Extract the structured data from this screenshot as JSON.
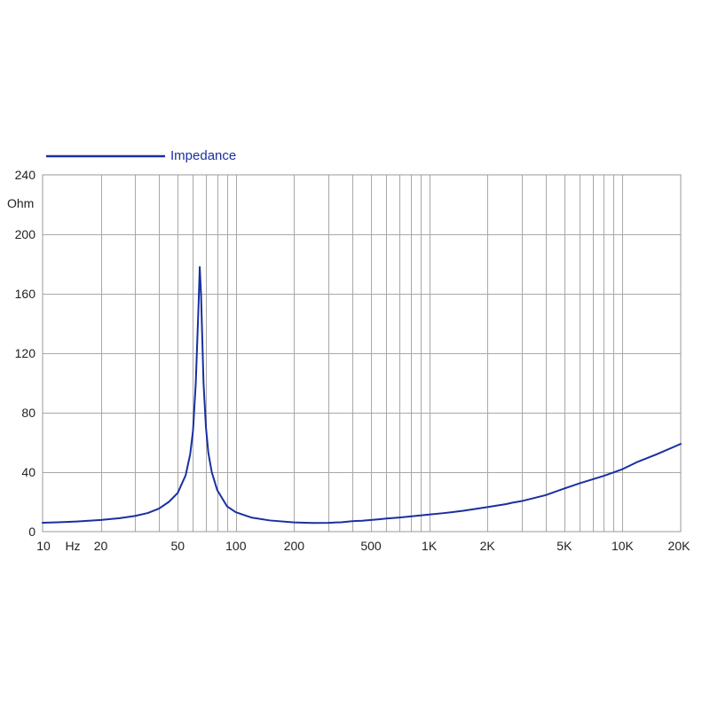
{
  "chart_data": {
    "type": "line",
    "title": "",
    "xscale": "log",
    "xlim": [
      10,
      20000
    ],
    "ylim": [
      0,
      240
    ],
    "grid": true,
    "legend_position": "top-left",
    "x_unit": "Hz",
    "y_unit": "Ohm",
    "x_ticks": [
      {
        "value": 10,
        "label": "10"
      },
      {
        "value": 20,
        "label": "20"
      },
      {
        "value": 50,
        "label": "50"
      },
      {
        "value": 100,
        "label": "100"
      },
      {
        "value": 200,
        "label": "200"
      },
      {
        "value": 500,
        "label": "500"
      },
      {
        "value": 1000,
        "label": "1K"
      },
      {
        "value": 2000,
        "label": "2K"
      },
      {
        "value": 5000,
        "label": "5K"
      },
      {
        "value": 10000,
        "label": "10K"
      },
      {
        "value": 20000,
        "label": "20K"
      }
    ],
    "y_ticks": [
      0,
      40,
      80,
      120,
      160,
      200,
      240
    ],
    "series": [
      {
        "name": "Impedance",
        "color": "#1a2fa0",
        "x": [
          10,
          12,
          15,
          20,
          25,
          30,
          35,
          40,
          45,
          50,
          55,
          58,
          60,
          62,
          64,
          65,
          66,
          68,
          70,
          72,
          75,
          80,
          90,
          100,
          120,
          150,
          200,
          250,
          300,
          350,
          400,
          420,
          450,
          500,
          550,
          600,
          700,
          800,
          1000,
          1200,
          1500,
          2000,
          2500,
          2700,
          3000,
          4000,
          5000,
          6000,
          8000,
          10000,
          12000,
          15000,
          20000
        ],
        "y": [
          6,
          6.3,
          6.8,
          7.8,
          9,
          10.5,
          12.5,
          15.5,
          20,
          26,
          38,
          52,
          68,
          100,
          150,
          178,
          160,
          100,
          70,
          53,
          40,
          28,
          17,
          13,
          9.5,
          7.5,
          6.2,
          5.8,
          5.9,
          6.3,
          7,
          7.2,
          7.3,
          7.8,
          8.3,
          8.8,
          9.5,
          10.2,
          11.5,
          12.5,
          14,
          16.5,
          18.5,
          19.5,
          20.5,
          24.5,
          29,
          32.5,
          37.5,
          42,
          47,
          52,
          59
        ]
      }
    ]
  }
}
